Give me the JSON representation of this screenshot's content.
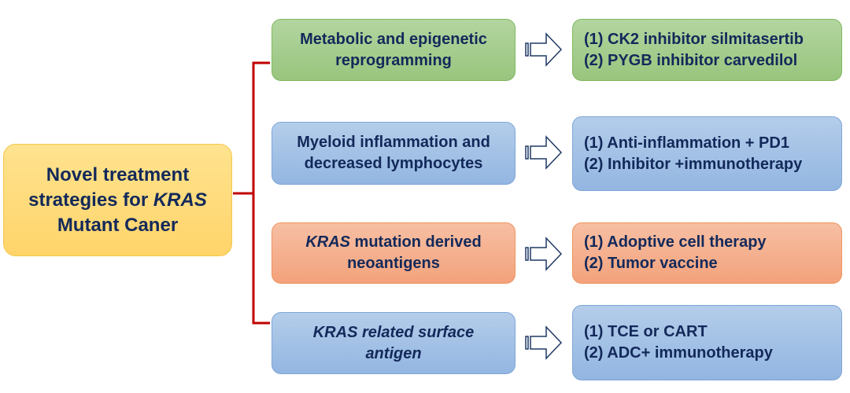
{
  "center": {
    "line1": "Novel treatment",
    "line2a": "strategies for ",
    "line2b": "KRAS",
    "line3": "Mutant Caner"
  },
  "rows": [
    {
      "category": {
        "pre": "",
        "italic": "",
        "text": "Metabolic and epigenetic reprogramming"
      },
      "strategies": [
        "(1) CK2 inhibitor silmitasertib",
        "(2) PYGB inhibitor carvedilol"
      ],
      "color": "green"
    },
    {
      "category": {
        "pre": "",
        "italic": "",
        "text": "Myeloid inflammation and decreased lymphocytes"
      },
      "strategies": [
        "(1)  Anti-inflammation + PD1",
        "(2)  Inhibitor +immunotherapy"
      ],
      "color": "blue"
    },
    {
      "category": {
        "italic": "KRAS",
        "text": " mutation derived neoantigens"
      },
      "strategies": [
        "(1) Adoptive cell therapy",
        "(2) Tumor vaccine"
      ],
      "color": "orange"
    },
    {
      "category": {
        "italic": "KRAS related surface antigen",
        "text": ""
      },
      "strategies": [
        "(1)  TCE or CART",
        "(2)  ADC+ immunotherapy"
      ],
      "color": "blue"
    }
  ],
  "colors": {
    "bracket": "#c00000",
    "text": "#13295a",
    "arrow": "#1f3864"
  }
}
